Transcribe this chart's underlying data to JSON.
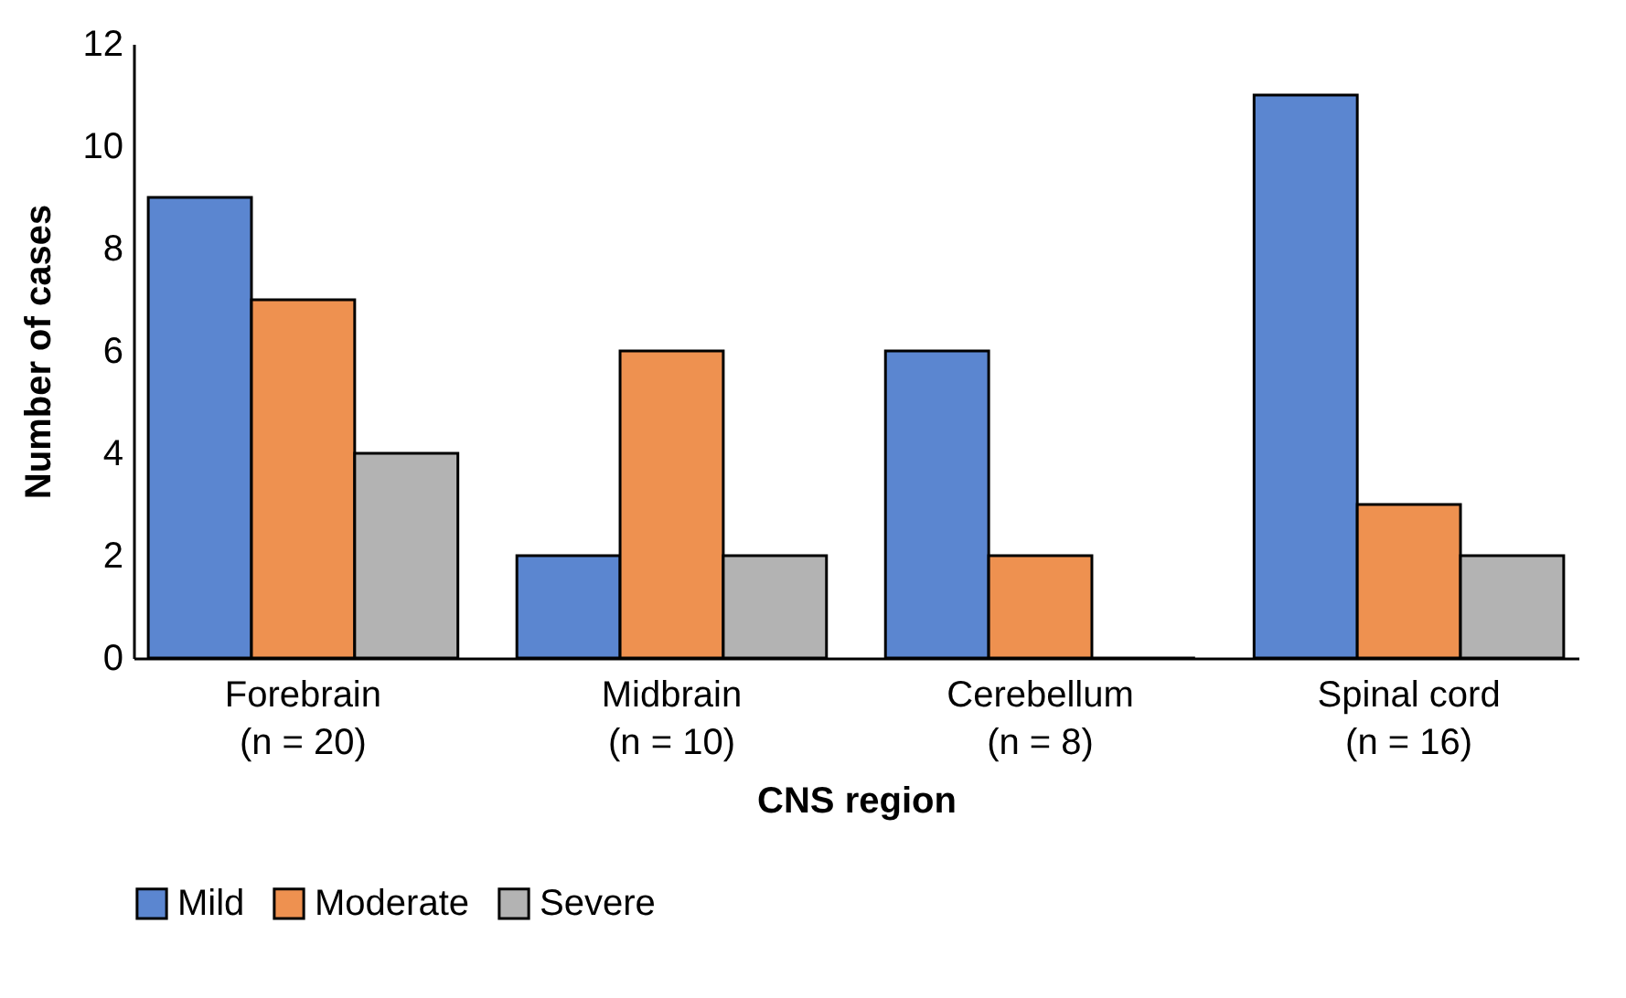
{
  "chart_data": {
    "type": "bar",
    "xlabel": "CNS region",
    "ylabel": "Number of cases",
    "categories": [
      "Forebrain\n(n = 20)",
      "Midbrain\n(n = 10)",
      "Cerebellum\n(n = 8)",
      "Spinal cord\n(n = 16)"
    ],
    "series": [
      {
        "name": "Mild",
        "color": "#5b86d0",
        "values": [
          9,
          2,
          6,
          11
        ]
      },
      {
        "name": "Moderate",
        "color": "#ee9150",
        "values": [
          7,
          6,
          2,
          3
        ]
      },
      {
        "name": "Severe",
        "color": "#b3b3b3",
        "values": [
          4,
          2,
          0,
          2
        ]
      }
    ],
    "ylim": [
      0,
      12
    ],
    "yticks": [
      0,
      2,
      4,
      6,
      8,
      10,
      12
    ],
    "grid": false,
    "legend": "bottom"
  }
}
